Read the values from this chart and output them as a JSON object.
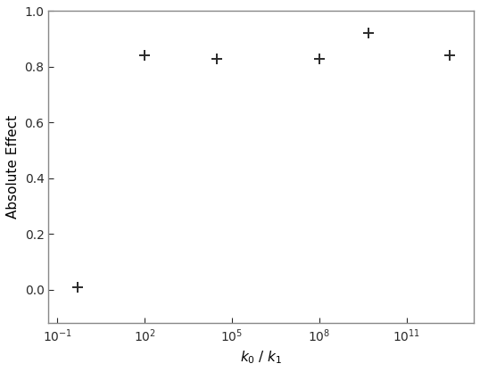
{
  "x_values": [
    0.5,
    100.0,
    30000.0,
    100000000.0,
    5000000000.0,
    3000000000000.0
  ],
  "y_values": [
    0.01,
    0.84,
    0.83,
    0.83,
    0.92,
    0.84
  ],
  "xlim_log": [
    -1.3,
    13.3
  ],
  "ylim": [
    -0.12,
    1.0
  ],
  "yticks": [
    0.0,
    0.2,
    0.4,
    0.6,
    0.8,
    1.0
  ],
  "xtick_locs": [
    0.1,
    100.0,
    100000.0,
    100000000.0,
    100000000000.0
  ],
  "xtick_labels": [
    "$10^{-1}$",
    "$10^{2}$",
    "$10^{5}$",
    "$10^{8}$",
    "$10^{11}$"
  ],
  "xlabel": "$k_0$ / $k_1$",
  "ylabel": "Absolute Effect",
  "marker": "+",
  "marker_color": "#2a2a2a",
  "marker_size": 9,
  "marker_linewidth": 1.4,
  "spine_color": "#888888",
  "tick_color": "#2a2a2a",
  "background_color": "#ffffff",
  "fontsize_ticks": 10,
  "fontsize_label": 11
}
